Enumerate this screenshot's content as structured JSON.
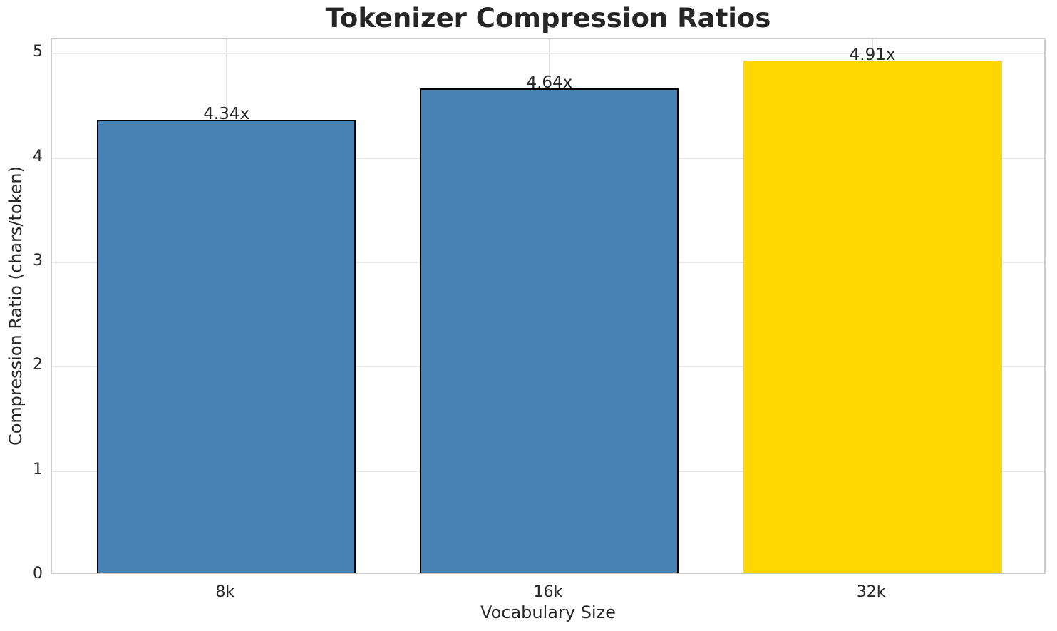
{
  "chart_data": {
    "type": "bar",
    "title": "Tokenizer Compression Ratios",
    "xlabel": "Vocabulary Size",
    "ylabel": "Compression Ratio (chars/token)",
    "categories": [
      "8k",
      "16k",
      "32k"
    ],
    "values": [
      4.34,
      4.64,
      4.91
    ],
    "bar_value_labels": [
      "4.34x",
      "4.64x",
      "4.91x"
    ],
    "ytick_labels": [
      "0",
      "1",
      "2",
      "3",
      "4",
      "5"
    ],
    "ytick_values": [
      0,
      1,
      2,
      3,
      4,
      5
    ],
    "ylim": [
      0,
      5.14
    ],
    "grid": "on",
    "legend": "none",
    "bar_colors": [
      "#4682B4",
      "#4682B4",
      "#FFD700"
    ],
    "bar_edge_colors": [
      "#000000",
      "#000000",
      "none"
    ],
    "colors": {
      "bar_default": "#4682B4",
      "bar_highlight": "#FFD700",
      "bar_edge": "#000000",
      "gridline": "#e8e8e8",
      "spine": "#cccccc",
      "text": "#262626",
      "background": "#ffffff"
    }
  }
}
